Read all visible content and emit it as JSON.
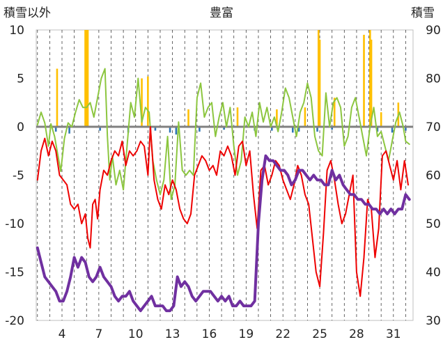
{
  "chart_data": {
    "type": "line",
    "title": "豊富",
    "ylabel_left": "積雪以外",
    "ylabel_right": "積雪",
    "ylim_left": [
      -20,
      10
    ],
    "ylim_right": [
      30,
      90
    ],
    "xlim": [
      1.9,
      32.6
    ],
    "yticks_left": [
      10,
      5,
      0,
      -5,
      -10,
      -15,
      -20
    ],
    "yticks_right": [
      90,
      80,
      70,
      60,
      50,
      40,
      30
    ],
    "xticks": [
      4,
      7,
      10,
      13,
      16,
      19,
      22,
      25,
      28,
      31
    ],
    "grid": "vertical-dashed",
    "colors": {
      "green": "#8cc63f",
      "red": "#ee0000",
      "purple": "#7030a0",
      "bar_pos": "#ffc000",
      "bar_neg": "#2e75b6",
      "zero": "#808080"
    },
    "bars_positive": [
      [
        3.6,
        6.0
      ],
      [
        5.9,
        10.0
      ],
      [
        6.0,
        10.0
      ],
      [
        6.1,
        10.0
      ],
      [
        10.5,
        5.0
      ],
      [
        11.0,
        5.2
      ],
      [
        14.3,
        1.8
      ],
      [
        18.3,
        2.0
      ],
      [
        21.5,
        1.8
      ],
      [
        23.8,
        2.0
      ],
      [
        24.9,
        10.0
      ],
      [
        25.0,
        9.0
      ],
      [
        26.2,
        3.0
      ],
      [
        28.6,
        9.5
      ],
      [
        29.1,
        10.0
      ],
      [
        29.2,
        9.0
      ],
      [
        30.0,
        1.5
      ],
      [
        31.4,
        2.5
      ]
    ],
    "bars_negative": [
      [
        3.5,
        -0.5
      ],
      [
        4.6,
        -0.7
      ],
      [
        7.1,
        -0.4
      ],
      [
        9.4,
        -0.6
      ],
      [
        11.2,
        -1.0
      ],
      [
        11.6,
        -0.4
      ],
      [
        12.8,
        -0.6
      ],
      [
        13.3,
        -0.8
      ],
      [
        15.2,
        -0.5
      ],
      [
        17.2,
        -0.3
      ],
      [
        19.7,
        -0.4
      ],
      [
        21.1,
        -0.4
      ],
      [
        22.8,
        -0.6
      ],
      [
        23.3,
        -0.5
      ],
      [
        24.8,
        -0.5
      ],
      [
        26.0,
        -0.3
      ],
      [
        29.7,
        -0.5
      ],
      [
        30.9,
        -0.6
      ],
      [
        32.0,
        -0.4
      ]
    ],
    "series": [
      {
        "color": "green",
        "axis": "left",
        "x": [
          2.0,
          2.3,
          2.6,
          2.9,
          3.1,
          3.4,
          3.6,
          3.9,
          4.2,
          4.5,
          4.8,
          5.1,
          5.4,
          5.7,
          6.0,
          6.3,
          6.6,
          6.9,
          7.2,
          7.5,
          7.7,
          7.9,
          8.1,
          8.4,
          8.7,
          9.0,
          9.3,
          9.6,
          9.9,
          10.2,
          10.5,
          10.8,
          11.1,
          11.4,
          11.7,
          12.0,
          12.3,
          12.6,
          12.9,
          13.2,
          13.5,
          13.8,
          14.1,
          14.4,
          14.7,
          15.0,
          15.3,
          15.6,
          15.9,
          16.2,
          16.5,
          16.8,
          17.1,
          17.4,
          17.7,
          18.0,
          18.3,
          18.6,
          18.9,
          19.2,
          19.5,
          19.8,
          20.1,
          20.4,
          20.7,
          21.0,
          21.3,
          21.6,
          21.9,
          22.2,
          22.5,
          22.8,
          23.1,
          23.4,
          23.7,
          24.0,
          24.3,
          24.6,
          24.9,
          25.2,
          25.5,
          25.8,
          26.1,
          26.4,
          26.7,
          27.0,
          27.3,
          27.6,
          27.9,
          28.2,
          28.5,
          28.8,
          29.1,
          29.4,
          29.7,
          30.0,
          30.3,
          30.6,
          30.9,
          31.2,
          31.5,
          31.8,
          32.0,
          32.3
        ],
        "y": [
          0.2,
          1.5,
          0.4,
          -2.0,
          0.3,
          -1.0,
          -2.5,
          -4.6,
          -1.2,
          0.4,
          0.0,
          1.5,
          2.8,
          2.0,
          2.0,
          2.5,
          1.0,
          3.0,
          5.0,
          6.0,
          -1.0,
          -5.5,
          -3.0,
          -6.0,
          -4.5,
          -6.5,
          -2.0,
          2.5,
          1.0,
          5.0,
          0.5,
          2.0,
          1.5,
          -3.5,
          -5.5,
          -7.0,
          -5.5,
          -1.0,
          -7.5,
          -6.0,
          0.5,
          -4.5,
          -5.0,
          -4.5,
          -5.0,
          3.0,
          4.5,
          1.0,
          2.0,
          2.5,
          -1.0,
          1.0,
          2.5,
          0.0,
          2.0,
          -2.0,
          -5.0,
          -3.5,
          1.0,
          0.0,
          1.5,
          -1.0,
          2.5,
          0.5,
          2.0,
          0.0,
          1.0,
          -0.5,
          1.5,
          4.0,
          3.0,
          1.0,
          -1.0,
          1.5,
          2.5,
          4.5,
          3.0,
          -1.0,
          -2.5,
          -3.0,
          3.5,
          0.0,
          2.5,
          3.0,
          2.0,
          -2.0,
          -1.0,
          2.0,
          3.0,
          1.0,
          -1.0,
          -3.0,
          0.0,
          2.0,
          -1.0,
          -0.5,
          -2.0,
          -3.5,
          -1.5,
          0.5,
          1.5,
          0.0,
          -1.5,
          -1.8
        ]
      },
      {
        "color": "red",
        "axis": "left",
        "x": [
          2.0,
          2.3,
          2.6,
          2.9,
          3.2,
          3.5,
          3.8,
          4.1,
          4.4,
          4.7,
          5.0,
          5.3,
          5.6,
          5.9,
          6.1,
          6.3,
          6.5,
          6.7,
          6.9,
          7.1,
          7.4,
          7.7,
          8.0,
          8.3,
          8.6,
          8.9,
          9.2,
          9.5,
          9.8,
          10.1,
          10.4,
          10.7,
          11.0,
          11.2,
          11.5,
          11.8,
          12.1,
          12.4,
          12.7,
          13.0,
          13.3,
          13.6,
          13.9,
          14.2,
          14.5,
          14.8,
          15.1,
          15.4,
          15.7,
          16.0,
          16.3,
          16.6,
          16.9,
          17.2,
          17.5,
          17.8,
          18.1,
          18.4,
          18.7,
          19.0,
          19.3,
          19.6,
          19.9,
          20.2,
          20.5,
          20.8,
          21.1,
          21.4,
          21.7,
          22.0,
          22.3,
          22.6,
          22.9,
          23.2,
          23.5,
          23.8,
          24.1,
          24.4,
          24.7,
          25.0,
          25.3,
          25.6,
          25.9,
          26.2,
          26.5,
          26.8,
          27.1,
          27.4,
          27.7,
          28.0,
          28.3,
          28.6,
          28.9,
          29.2,
          29.5,
          29.8,
          30.1,
          30.4,
          30.7,
          31.0,
          31.3,
          31.6,
          31.9,
          32.2
        ],
        "y": [
          -5.5,
          -2.5,
          -1.2,
          -3.0,
          -1.5,
          -2.5,
          -5.0,
          -5.5,
          -6.0,
          -8.0,
          -8.5,
          -8.0,
          -10.0,
          -9.0,
          -11.5,
          -12.5,
          -8.0,
          -7.5,
          -9.5,
          -6.5,
          -4.5,
          -5.0,
          -3.5,
          -2.5,
          -3.0,
          -1.5,
          -4.0,
          -2.5,
          -3.0,
          -2.5,
          -1.5,
          -2.0,
          -5.0,
          0.0,
          -5.5,
          -7.5,
          -8.5,
          -6.0,
          -7.0,
          -5.5,
          -6.5,
          -8.5,
          -9.5,
          -10.0,
          -9.0,
          -5.0,
          -4.0,
          -3.0,
          -3.5,
          -4.5,
          -4.0,
          -5.0,
          -2.5,
          -3.0,
          -2.0,
          -3.0,
          -5.0,
          -2.0,
          -1.5,
          -4.0,
          -2.5,
          -7.0,
          -10.5,
          -4.5,
          -4.0,
          -6.0,
          -5.0,
          -3.5,
          -4.0,
          -5.5,
          -6.5,
          -7.5,
          -6.0,
          -4.0,
          -5.0,
          -7.0,
          -8.0,
          -11.5,
          -15.0,
          -16.5,
          -11.0,
          -4.5,
          -3.5,
          -5.5,
          -8.0,
          -10.0,
          -9.0,
          -7.0,
          -5.0,
          -15.0,
          -17.5,
          -13.5,
          -7.5,
          -8.5,
          -13.5,
          -10.5,
          -3.0,
          -2.5,
          -4.0,
          -5.5,
          -3.5,
          -6.5,
          -3.5,
          -6.0
        ]
      },
      {
        "color": "purple",
        "axis": "right",
        "x": [
          2.0,
          2.3,
          2.6,
          2.9,
          3.2,
          3.5,
          3.8,
          4.1,
          4.4,
          4.7,
          5.0,
          5.3,
          5.6,
          5.9,
          6.2,
          6.5,
          6.8,
          7.1,
          7.4,
          7.7,
          8.0,
          8.3,
          8.6,
          8.9,
          9.2,
          9.5,
          9.8,
          10.1,
          10.4,
          10.7,
          11.0,
          11.3,
          11.6,
          11.9,
          12.2,
          12.5,
          12.8,
          13.1,
          13.4,
          13.7,
          14.0,
          14.3,
          14.6,
          14.9,
          15.2,
          15.5,
          15.8,
          16.1,
          16.4,
          16.7,
          17.0,
          17.3,
          17.6,
          17.9,
          18.2,
          18.5,
          18.8,
          19.1,
          19.4,
          19.7,
          20.0,
          20.3,
          20.6,
          20.9,
          21.2,
          21.5,
          21.8,
          22.1,
          22.4,
          22.7,
          23.0,
          23.3,
          23.6,
          23.9,
          24.2,
          24.5,
          24.8,
          25.1,
          25.4,
          25.7,
          26.0,
          26.3,
          26.6,
          26.9,
          27.2,
          27.5,
          27.8,
          28.1,
          28.4,
          28.7,
          29.0,
          29.3,
          29.6,
          29.9,
          30.2,
          30.5,
          30.8,
          31.1,
          31.4,
          31.7,
          32.0,
          32.3
        ],
        "y": [
          45,
          42,
          39,
          38,
          37,
          36,
          34,
          34,
          36,
          39,
          43,
          41,
          43,
          42,
          39,
          38,
          39,
          41,
          39,
          38,
          37,
          35,
          34,
          35,
          35,
          36,
          34,
          33,
          32,
          33,
          34,
          35,
          33,
          33,
          33,
          32,
          32,
          33,
          39,
          37,
          38,
          37,
          35,
          34,
          35,
          36,
          36,
          36,
          35,
          34,
          35,
          34,
          35,
          33,
          33,
          34,
          33,
          33,
          33,
          34,
          50,
          59,
          64,
          63,
          63,
          62,
          61,
          61,
          60,
          58,
          59,
          61,
          61,
          60,
          59,
          60,
          59,
          59,
          58,
          58,
          61,
          59,
          60,
          58,
          57,
          56,
          56,
          55,
          55,
          54,
          54,
          53,
          53,
          52,
          53,
          52,
          53,
          52,
          53,
          53,
          56,
          55
        ]
      }
    ]
  }
}
